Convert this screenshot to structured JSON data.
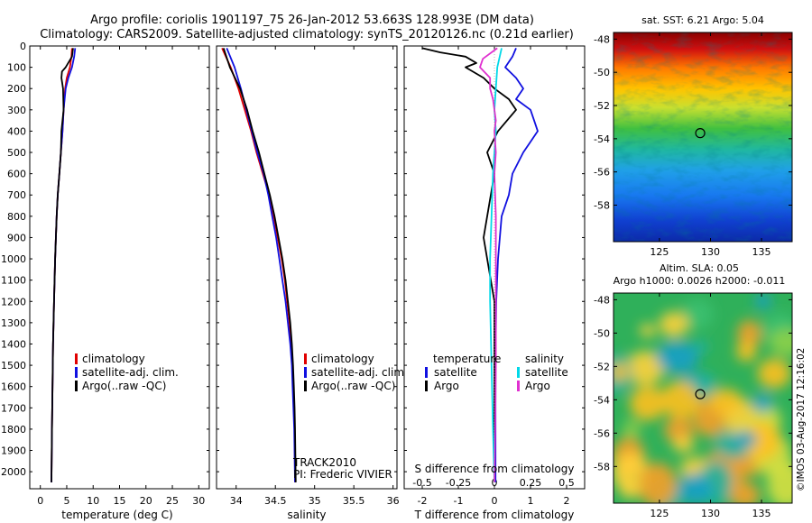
{
  "header": {
    "title_line1": "Argo profile: coriolis 1901197_75 26-Jan-2012 53.663S 128.993E (DM data)",
    "title_line2": "Climatology: CARS2009. Satellite-adjusted climatology: synTS_20120126.nc (0.21d earlier)"
  },
  "colors": {
    "climatology": "#e00000",
    "satellite": "#1010e0",
    "argo": "#000000",
    "satellite_sal": "#00d8e8",
    "argo_sal": "#e030d0"
  },
  "depth_ticks": [
    "0",
    "100",
    "200",
    "300",
    "400",
    "500",
    "600",
    "700",
    "800",
    "900",
    "1000",
    "1100",
    "1200",
    "1300",
    "1400",
    "1500",
    "1600",
    "1700",
    "1800",
    "1900",
    "2000"
  ],
  "chart_data": [
    {
      "type": "line",
      "name": "temperature",
      "xlabel": "temperature (deg C)",
      "xlim": [
        -2,
        32
      ],
      "ylim": [
        2080,
        0
      ],
      "xticks": [
        "0",
        "5",
        "10",
        "15",
        "20",
        "25",
        "30"
      ],
      "xtick_values": [
        0,
        5,
        10,
        15,
        20,
        25,
        30
      ],
      "legend": [
        "climatology",
        "satellite-adj. clim.",
        "Argo(..raw -QC)"
      ],
      "series": [
        {
          "name": "climatology",
          "color": "#e00000",
          "depth": [
            10,
            50,
            100,
            150,
            200,
            300,
            400,
            500,
            600,
            700,
            800,
            1000,
            1200,
            1400,
            1600,
            1800,
            2050
          ],
          "values": [
            6.0,
            5.9,
            5.6,
            5.0,
            4.7,
            4.4,
            4.2,
            3.9,
            3.6,
            3.3,
            3.1,
            2.8,
            2.6,
            2.4,
            2.3,
            2.2,
            2.1
          ]
        },
        {
          "name": "satellite-adj. clim.",
          "color": "#1010e0",
          "depth": [
            10,
            50,
            100,
            150,
            200,
            300,
            400,
            500,
            600,
            700,
            800,
            1000,
            1200,
            1400,
            1600,
            1800,
            2050
          ],
          "values": [
            6.6,
            6.4,
            6.0,
            5.3,
            4.8,
            4.4,
            4.2,
            3.9,
            3.6,
            3.3,
            3.1,
            2.8,
            2.6,
            2.4,
            2.3,
            2.2,
            2.1
          ]
        },
        {
          "name": "Argo(..raw -QC)",
          "color": "#000000",
          "depth": [
            10,
            50,
            100,
            120,
            150,
            200,
            300,
            400,
            500,
            600,
            700,
            800,
            1000,
            1200,
            1400,
            1600,
            1800,
            2050
          ],
          "values": [
            6.2,
            6.0,
            4.8,
            4.1,
            4.0,
            4.3,
            4.4,
            4.0,
            3.9,
            3.6,
            3.3,
            3.1,
            2.8,
            2.6,
            2.4,
            2.3,
            2.2,
            2.1
          ]
        }
      ]
    },
    {
      "type": "line",
      "name": "salinity",
      "xlabel": "salinity",
      "xlim": [
        33.75,
        36.05
      ],
      "ylim": [
        2080,
        0
      ],
      "xticks": [
        "34",
        "34.5",
        "35",
        "35.5",
        "36"
      ],
      "xtick_values": [
        34,
        34.5,
        35,
        35.5,
        36
      ],
      "legend": [
        "climatology",
        "satellite-adj. clim.",
        "Argo(..raw -QC)"
      ],
      "annotation_1": "TRACK2010",
      "annotation_2": "PI: Frederic VIVIER",
      "series": [
        {
          "name": "climatology",
          "color": "#e00000",
          "depth": [
            10,
            100,
            200,
            300,
            400,
            500,
            600,
            700,
            800,
            900,
            1000,
            1100,
            1200,
            1300,
            1400,
            1500,
            1600,
            1700,
            1800,
            2050
          ],
          "values": [
            33.82,
            33.93,
            34.03,
            34.11,
            34.19,
            34.26,
            34.34,
            34.42,
            34.48,
            34.53,
            34.58,
            34.62,
            34.65,
            34.68,
            34.7,
            34.72,
            34.73,
            34.74,
            34.745,
            34.75
          ]
        },
        {
          "name": "satellite-adj. clim.",
          "color": "#1010e0",
          "depth": [
            10,
            100,
            200,
            300,
            400,
            500,
            600,
            700,
            800,
            900,
            1000,
            1100,
            1200,
            1300,
            1400,
            1500,
            1600,
            1700,
            1800,
            2050
          ],
          "values": [
            33.88,
            33.98,
            34.06,
            34.13,
            34.2,
            34.27,
            34.35,
            34.41,
            34.46,
            34.51,
            34.55,
            34.59,
            34.63,
            34.66,
            34.69,
            34.71,
            34.72,
            34.73,
            34.74,
            34.75
          ]
        },
        {
          "name": "Argo(..raw -QC)",
          "color": "#000000",
          "depth": [
            10,
            100,
            200,
            300,
            400,
            500,
            600,
            700,
            800,
            900,
            1000,
            1100,
            1200,
            1300,
            1400,
            1500,
            1600,
            1700,
            1800,
            2050
          ],
          "values": [
            33.84,
            33.92,
            34.05,
            34.14,
            34.21,
            34.29,
            34.36,
            34.43,
            34.49,
            34.54,
            34.59,
            34.63,
            34.66,
            34.69,
            34.71,
            34.725,
            34.735,
            34.745,
            34.75,
            34.76
          ]
        }
      ]
    },
    {
      "type": "line",
      "name": "differences",
      "xlabel": "T difference from climatology",
      "xlabel_top": "S difference from climatology",
      "xlim": [
        -2.5,
        2.5
      ],
      "ylim": [
        2080,
        0
      ],
      "xticks": [
        "-2",
        "-1",
        "0",
        "1",
        "2"
      ],
      "xtick_values": [
        -2,
        -1,
        0,
        1,
        2
      ],
      "sticks_labels": [
        "-0.5",
        "-0.25",
        "0",
        "0.25",
        "0.5"
      ],
      "sticks_values": [
        -0.5,
        -0.25,
        0,
        0.25,
        0.5
      ],
      "legend_t_title": "temperature",
      "legend_s_title": "salinity",
      "legend_t": [
        "satellite",
        "Argo"
      ],
      "legend_s": [
        "satellite",
        "Argo"
      ],
      "series": [
        {
          "name": "T satellite",
          "color": "#1010e0",
          "depth": [
            10,
            50,
            100,
            150,
            200,
            250,
            300,
            350,
            400,
            450,
            500,
            600,
            700,
            800,
            1000,
            1200,
            1500,
            1800,
            2050
          ],
          "values": [
            0.6,
            0.5,
            0.3,
            0.6,
            0.8,
            0.6,
            1.0,
            1.1,
            1.2,
            1.0,
            0.8,
            0.5,
            0.4,
            0.2,
            0.1,
            0.05,
            0.03,
            0.03,
            0.03
          ]
        },
        {
          "name": "T Argo",
          "color": "#000000",
          "depth": [
            10,
            30,
            50,
            80,
            100,
            150,
            200,
            250,
            300,
            400,
            500,
            600,
            700,
            800,
            900,
            1000,
            1200,
            1500,
            1800,
            2050
          ],
          "values": [
            -2.0,
            -1.5,
            -0.8,
            -0.5,
            -0.8,
            -0.3,
            0.0,
            0.4,
            0.6,
            0.1,
            -0.2,
            0.0,
            -0.1,
            -0.2,
            -0.3,
            -0.2,
            0.0,
            0.0,
            0.0,
            0.0
          ]
        },
        {
          "name": "S satellite",
          "color": "#00d8e8",
          "depth": [
            10,
            100,
            200,
            300,
            400,
            500,
            600,
            800,
            1000,
            1200,
            1500,
            1800,
            2050
          ],
          "values": [
            0.05,
            0.02,
            0.01,
            0.0,
            0.01,
            0.0,
            -0.01,
            -0.02,
            -0.03,
            -0.03,
            -0.02,
            -0.01,
            0.0
          ]
        },
        {
          "name": "S Argo",
          "color": "#e030d0",
          "depth": [
            10,
            60,
            100,
            150,
            200,
            250,
            300,
            350,
            400,
            500,
            600,
            800,
            1000,
            1200,
            1500,
            1800,
            2050
          ],
          "values": [
            0.02,
            -0.08,
            -0.1,
            -0.03,
            -0.03,
            -0.01,
            0.0,
            0.01,
            0.0,
            0.01,
            0.0,
            0.01,
            0.01,
            0.01,
            0.01,
            0.005,
            0.0
          ]
        }
      ]
    },
    {
      "type": "heatmap",
      "name": "sst-map",
      "title": "sat. SST: 6.21  Argo: 5.04",
      "yticks": [
        "-48",
        "-50",
        "-52",
        "-54",
        "-56",
        "-58"
      ],
      "ytick_values": [
        -48,
        -50,
        -52,
        -54,
        -56,
        -58
      ],
      "xticks": [
        "125",
        "130",
        "135"
      ],
      "xtick_values": [
        125,
        130,
        135
      ],
      "xlim": [
        120.5,
        138
      ],
      "ylim": [
        -60.2,
        -47.6
      ],
      "marker_lon": 128.993,
      "marker_lat": -53.663
    },
    {
      "type": "heatmap",
      "name": "sla-map",
      "title_line1": "Altim. SLA: 0.05",
      "title_line2": "Argo h1000: 0.0026 h2000: -0.011",
      "yticks": [
        "-48",
        "-50",
        "-52",
        "-54",
        "-56",
        "-58"
      ],
      "ytick_values": [
        -48,
        -50,
        -52,
        -54,
        -56,
        -58
      ],
      "xticks": [
        "125",
        "130",
        "135"
      ],
      "xtick_values": [
        125,
        130,
        135
      ],
      "xlim": [
        120.5,
        138
      ],
      "ylim": [
        -60.2,
        -47.6
      ],
      "marker_lon": 128.993,
      "marker_lat": -53.663
    }
  ],
  "footer": {
    "credit": "©IMOS 03-Aug-2017 12:16:02"
  }
}
